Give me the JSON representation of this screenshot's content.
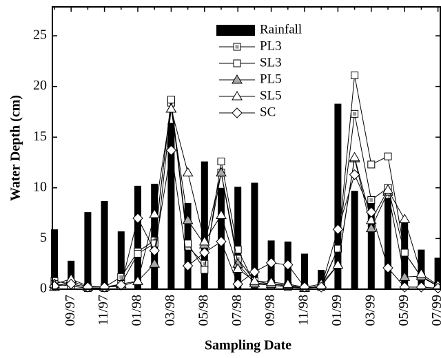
{
  "chart_data": {
    "type": "bar-line",
    "xlabel": "Sampling Date",
    "ylabel": "Water Depth (cm)",
    "categories": [
      null,
      "09/97",
      null,
      "11/97",
      null,
      "01/98",
      null,
      "03/98",
      null,
      "05/98",
      null,
      "07/98",
      null,
      "09/98",
      null,
      "11/98",
      null,
      "01/99",
      null,
      "03/99",
      null,
      "05/99",
      null,
      "07/99"
    ],
    "ylim": [
      0,
      25
    ],
    "yticks": [
      0,
      5,
      10,
      15,
      20,
      25
    ],
    "legend": "top",
    "series": [
      {
        "name": "Rainfall",
        "kind": "bar",
        "color": "#000000",
        "values": [
          5.9,
          2.8,
          7.6,
          8.7,
          5.7,
          10.2,
          10.4,
          16.4,
          8.5,
          12.6,
          10.0,
          10.1,
          10.5,
          4.8,
          4.7,
          3.5,
          1.9,
          18.3,
          9.7,
          8.6,
          9.0,
          6.7,
          3.9,
          3.1
        ]
      },
      {
        "name": "PL3",
        "kind": "line",
        "marker": "dotted-square",
        "color": "#000000",
        "values": [
          0.8,
          0.5,
          0.2,
          0.2,
          1.2,
          3.7,
          4.8,
          18.4,
          4.2,
          2.5,
          11.5,
          3.0,
          0.8,
          0.5,
          0.3,
          0.1,
          0.2,
          4.0,
          17.3,
          8.8,
          10.0,
          3.6,
          1.2,
          0.3
        ]
      },
      {
        "name": "SL3",
        "kind": "line",
        "marker": "square",
        "color": "#000000",
        "values": [
          0.5,
          0.3,
          0.1,
          0.1,
          0.5,
          3.5,
          4.5,
          18.7,
          4.5,
          1.9,
          12.6,
          3.9,
          0.5,
          0.4,
          0.2,
          0.1,
          0.3,
          4.0,
          21.1,
          12.3,
          13.1,
          3.6,
          1.2,
          0.3
        ]
      },
      {
        "name": "PL5",
        "kind": "line",
        "marker": "filled-triangle",
        "color": "#000000",
        "values": [
          0.2,
          0.8,
          0.2,
          0.2,
          0.5,
          0.8,
          2.5,
          17.8,
          6.8,
          4.4,
          11.5,
          2.5,
          0.6,
          0.5,
          0.4,
          0.1,
          0.3,
          2.4,
          12.9,
          6.0,
          9.6,
          1.2,
          1.3,
          0.3
        ]
      },
      {
        "name": "SL5",
        "kind": "line",
        "marker": "triangle",
        "color": "#000000",
        "values": [
          0.5,
          1.0,
          0.3,
          0.2,
          0.3,
          0.8,
          7.4,
          17.8,
          11.5,
          4.7,
          7.3,
          2.0,
          0.8,
          0.7,
          0.5,
          0.2,
          0.5,
          2.4,
          13.0,
          6.8,
          9.8,
          6.9,
          1.5,
          0.4
        ]
      },
      {
        "name": "SC",
        "kind": "line",
        "marker": "diamond",
        "color": "#000000",
        "values": [
          0.3,
          0.5,
          0.2,
          0.2,
          0.4,
          7.0,
          3.8,
          13.7,
          2.3,
          3.6,
          4.7,
          0.5,
          1.7,
          2.6,
          2.4,
          0.2,
          0.2,
          5.9,
          11.3,
          7.6,
          2.1,
          0.2,
          0.2,
          0.1
        ]
      }
    ]
  }
}
